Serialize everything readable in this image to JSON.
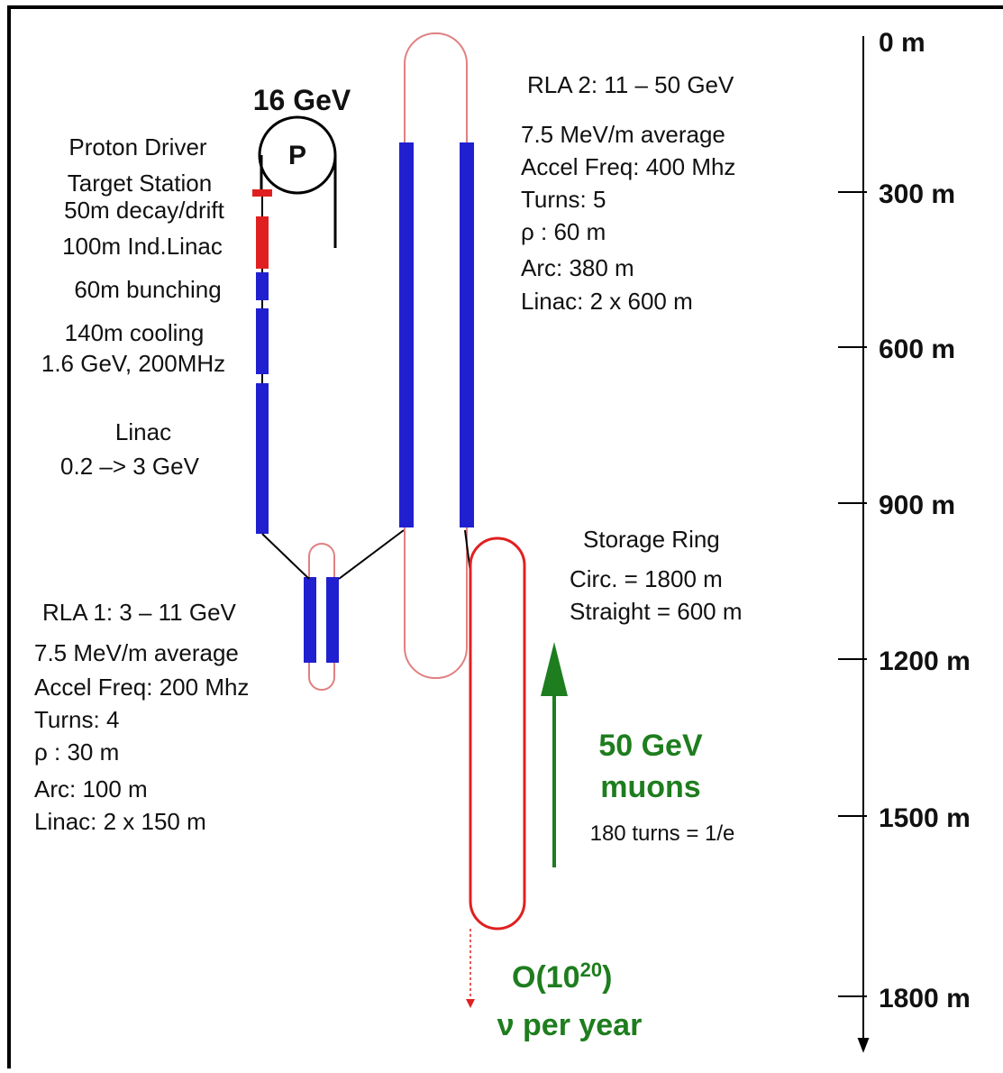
{
  "proton": {
    "energy": "16 GeV",
    "ring_label": "P"
  },
  "front_end": [
    "Proton Driver",
    "Target Station",
    "50m decay/drift",
    "100m Ind.Linac",
    "60m bunching",
    "140m cooling",
    "1.6 GeV, 200MHz",
    "Linac",
    "0.2 –> 3 GeV"
  ],
  "rla2": [
    "RLA 2:  11 – 50 GeV",
    "7.5 MeV/m average",
    "Accel Freq: 400 Mhz",
    "Turns:   5",
    "ρ :  60 m",
    "Arc:  380 m",
    "Linac:  2 x 600 m"
  ],
  "rla1": [
    "RLA 1:  3 – 11 GeV",
    "7.5 MeV/m average",
    "Accel Freq: 200 Mhz",
    "Turns:   4",
    "ρ :  30 m",
    "Arc:  100 m",
    "Linac:  2 x 150 m"
  ],
  "storage_ring": [
    "Storage Ring",
    "Circ. = 1800 m",
    "Straight = 600 m"
  ],
  "muons": [
    "50 GeV",
    "muons",
    "180 turns = 1/e"
  ],
  "neutrinos": {
    "prefix": "O(10",
    "exponent": "20",
    "suffix": ")",
    "line2": "ν per year"
  },
  "scale": [
    "0 m",
    "300 m",
    "600 m",
    "900 m",
    "1200 m",
    "1500 m",
    "1800 m"
  ]
}
